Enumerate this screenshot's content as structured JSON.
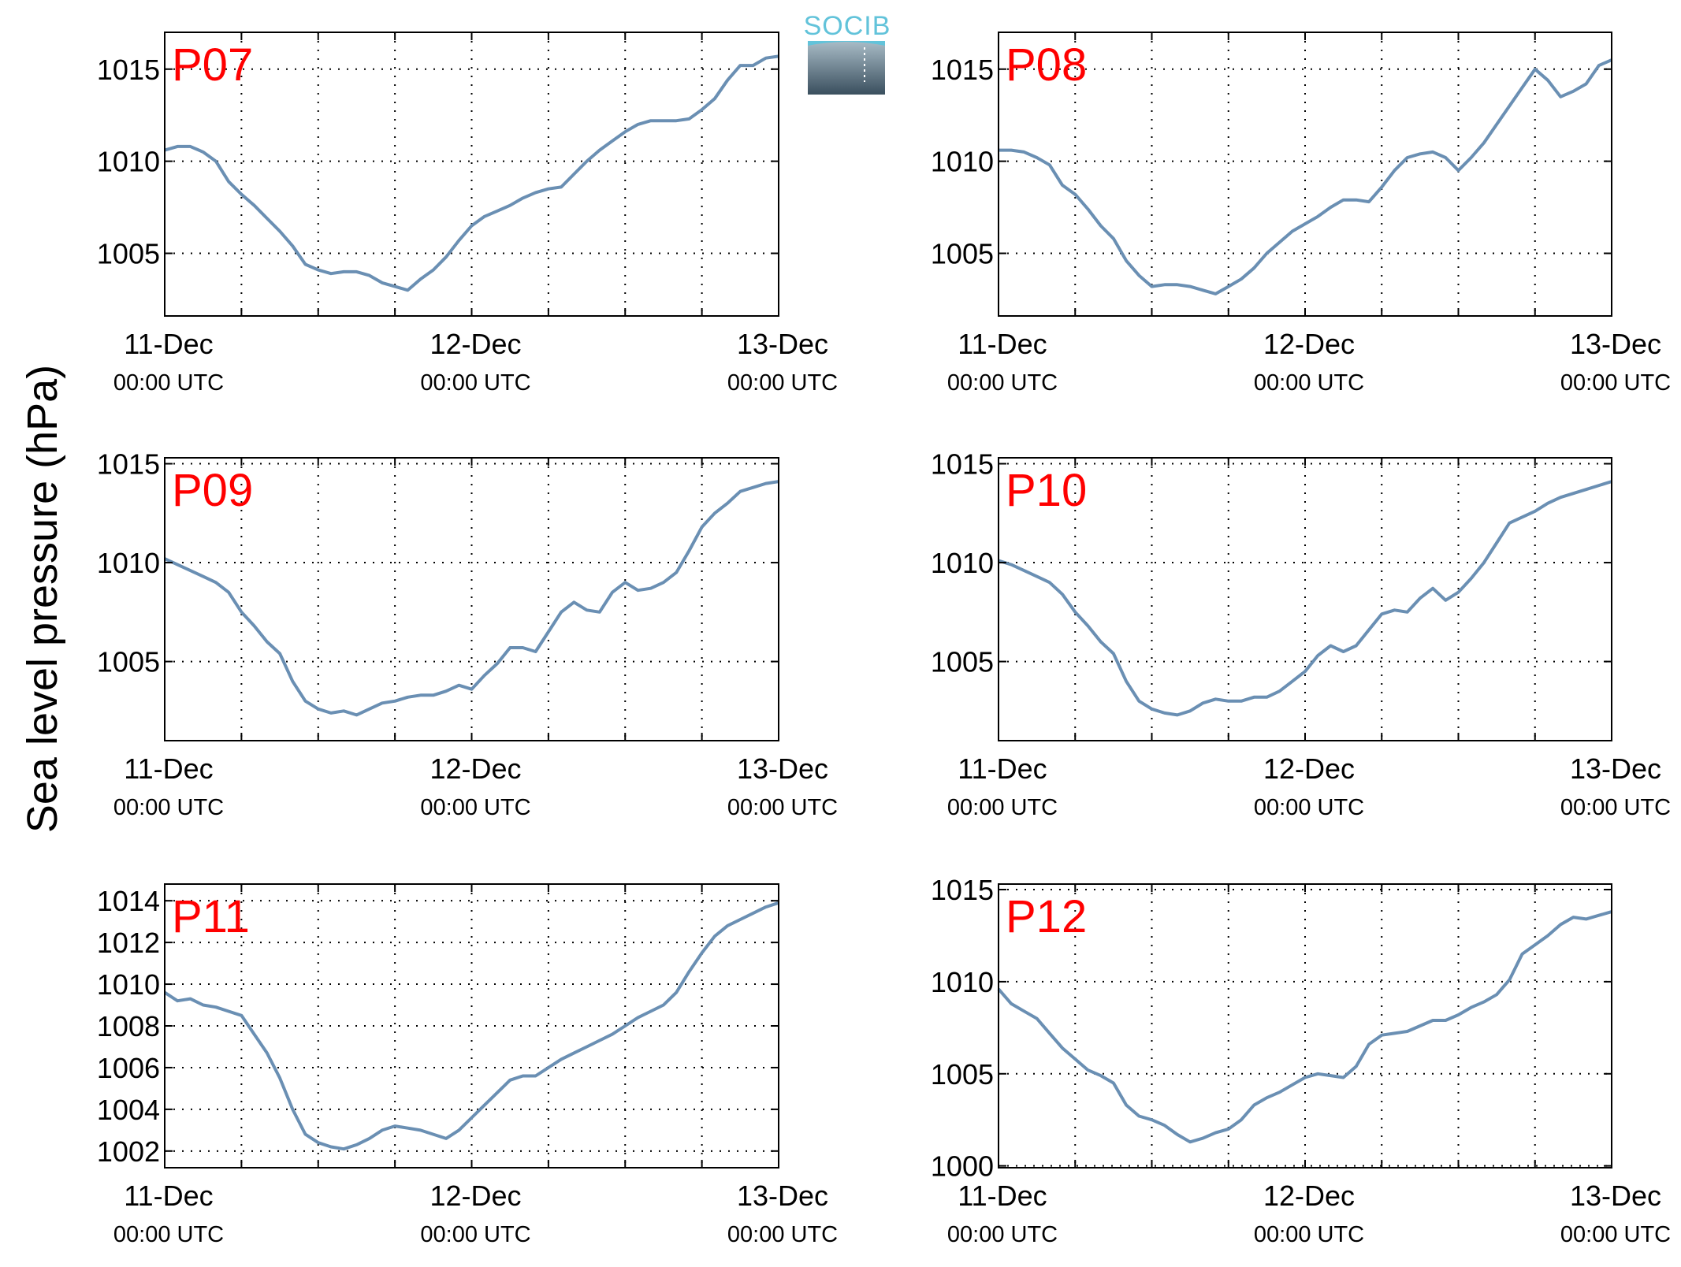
{
  "figure": {
    "ylabel": "Sea level pressure (hPa)",
    "logo_text": "SOCIB",
    "colors": {
      "line": "#6a8fb3",
      "station_label": "#ff0000",
      "axis": "#000000",
      "grid": "#000000"
    }
  },
  "chart_data": [
    {
      "type": "line",
      "station": "P07",
      "xlabels": [
        {
          "day": "11-Dec",
          "time": "00:00 UTC"
        },
        {
          "day": "12-Dec",
          "time": "00:00 UTC"
        },
        {
          "day": "13-Dec",
          "time": "00:00 UTC"
        }
      ],
      "xlim": [
        0,
        48
      ],
      "ylim": [
        1001.6,
        1017
      ],
      "yticks": [
        1005,
        1010,
        1015
      ],
      "grid": true,
      "x": [
        0,
        1,
        2,
        3,
        4,
        5,
        6,
        7,
        8,
        9,
        10,
        11,
        12,
        13,
        14,
        15,
        16,
        17,
        18,
        19,
        20,
        21,
        22,
        23,
        24,
        25,
        26,
        27,
        28,
        29,
        30,
        31,
        32,
        33,
        34,
        35,
        36,
        37,
        38,
        39,
        40,
        41,
        42,
        43,
        44,
        45,
        46,
        47,
        48
      ],
      "y": [
        1010.6,
        1010.8,
        1010.8,
        1010.5,
        1010.0,
        1008.9,
        1008.2,
        1007.6,
        1006.9,
        1006.2,
        1005.4,
        1004.4,
        1004.1,
        1003.9,
        1004.0,
        1004.0,
        1003.8,
        1003.4,
        1003.2,
        1003.0,
        1003.6,
        1004.1,
        1004.8,
        1005.7,
        1006.5,
        1007.0,
        1007.3,
        1007.6,
        1008.0,
        1008.3,
        1008.5,
        1008.6,
        1009.3,
        1010.0,
        1010.6,
        1011.1,
        1011.6,
        1012.0,
        1012.2,
        1012.2,
        1012.2,
        1012.3,
        1012.8,
        1013.4,
        1014.4,
        1015.2,
        1015.2,
        1015.6,
        1015.7
      ]
    },
    {
      "type": "line",
      "station": "P08",
      "xlabels": [
        {
          "day": "11-Dec",
          "time": "00:00 UTC"
        },
        {
          "day": "12-Dec",
          "time": "00:00 UTC"
        },
        {
          "day": "13-Dec",
          "time": "00:00 UTC"
        }
      ],
      "xlim": [
        0,
        48
      ],
      "ylim": [
        1001.6,
        1017
      ],
      "yticks": [
        1005,
        1010,
        1015
      ],
      "grid": true,
      "x": [
        0,
        1,
        2,
        3,
        4,
        5,
        6,
        7,
        8,
        9,
        10,
        11,
        12,
        13,
        14,
        15,
        16,
        17,
        18,
        19,
        20,
        21,
        22,
        23,
        24,
        25,
        26,
        27,
        28,
        29,
        30,
        31,
        32,
        33,
        34,
        35,
        36,
        37,
        38,
        39,
        40,
        41,
        42,
        43,
        44,
        45,
        46,
        47,
        48
      ],
      "y": [
        1010.6,
        1010.6,
        1010.5,
        1010.2,
        1009.8,
        1008.7,
        1008.2,
        1007.4,
        1006.5,
        1005.8,
        1004.6,
        1003.8,
        1003.2,
        1003.3,
        1003.3,
        1003.2,
        1003.0,
        1002.8,
        1003.2,
        1003.6,
        1004.2,
        1005.0,
        1005.6,
        1006.2,
        1006.6,
        1007.0,
        1007.5,
        1007.9,
        1007.9,
        1007.8,
        1008.6,
        1009.5,
        1010.2,
        1010.4,
        1010.5,
        1010.2,
        1009.5,
        1010.2,
        1011.0,
        1012.0,
        1013.0,
        1014.0,
        1015.0,
        1014.4,
        1013.5,
        1013.8,
        1014.2,
        1015.2,
        1015.5
      ]
    },
    {
      "type": "line",
      "station": "P09",
      "xlabels": [
        {
          "day": "11-Dec",
          "time": "00:00 UTC"
        },
        {
          "day": "12-Dec",
          "time": "00:00 UTC"
        },
        {
          "day": "13-Dec",
          "time": "00:00 UTC"
        }
      ],
      "xlim": [
        0,
        48
      ],
      "ylim": [
        1001.0,
        1015.3
      ],
      "yticks": [
        1005,
        1010,
        1015
      ],
      "grid": true,
      "x": [
        0,
        1,
        2,
        3,
        4,
        5,
        6,
        7,
        8,
        9,
        10,
        11,
        12,
        13,
        14,
        15,
        16,
        17,
        18,
        19,
        20,
        21,
        22,
        23,
        24,
        25,
        26,
        27,
        28,
        29,
        30,
        31,
        32,
        33,
        34,
        35,
        36,
        37,
        38,
        39,
        40,
        41,
        42,
        43,
        44,
        45,
        46,
        47,
        48
      ],
      "y": [
        1010.2,
        1009.9,
        1009.6,
        1009.3,
        1009.0,
        1008.5,
        1007.5,
        1006.8,
        1006.0,
        1005.4,
        1004.0,
        1003.0,
        1002.6,
        1002.4,
        1002.5,
        1002.3,
        1002.6,
        1002.9,
        1003.0,
        1003.2,
        1003.3,
        1003.3,
        1003.5,
        1003.8,
        1003.6,
        1004.3,
        1004.9,
        1005.7,
        1005.7,
        1005.5,
        1006.5,
        1007.5,
        1008.0,
        1007.6,
        1007.5,
        1008.5,
        1009.0,
        1008.6,
        1008.7,
        1009.0,
        1009.5,
        1010.6,
        1011.8,
        1012.5,
        1013.0,
        1013.6,
        1013.8,
        1014.0,
        1014.1
      ]
    },
    {
      "type": "line",
      "station": "P10",
      "xlabels": [
        {
          "day": "11-Dec",
          "time": "00:00 UTC"
        },
        {
          "day": "12-Dec",
          "time": "00:00 UTC"
        },
        {
          "day": "13-Dec",
          "time": "00:00 UTC"
        }
      ],
      "xlim": [
        0,
        48
      ],
      "ylim": [
        1001.0,
        1015.3
      ],
      "yticks": [
        1005,
        1010,
        1015
      ],
      "grid": true,
      "x": [
        0,
        1,
        2,
        3,
        4,
        5,
        6,
        7,
        8,
        9,
        10,
        11,
        12,
        13,
        14,
        15,
        16,
        17,
        18,
        19,
        20,
        21,
        22,
        23,
        24,
        25,
        26,
        27,
        28,
        29,
        30,
        31,
        32,
        33,
        34,
        35,
        36,
        37,
        38,
        39,
        40,
        41,
        42,
        43,
        44,
        45,
        46,
        47,
        48
      ],
      "y": [
        1010.1,
        1009.9,
        1009.6,
        1009.3,
        1009.0,
        1008.4,
        1007.5,
        1006.8,
        1006.0,
        1005.4,
        1004.0,
        1003.0,
        1002.6,
        1002.4,
        1002.3,
        1002.5,
        1002.9,
        1003.1,
        1003.0,
        1003.0,
        1003.2,
        1003.2,
        1003.5,
        1004.0,
        1004.5,
        1005.3,
        1005.8,
        1005.5,
        1005.8,
        1006.6,
        1007.4,
        1007.6,
        1007.5,
        1008.2,
        1008.7,
        1008.1,
        1008.5,
        1009.2,
        1010.0,
        1011.0,
        1012.0,
        1012.3,
        1012.6,
        1013.0,
        1013.3,
        1013.5,
        1013.7,
        1013.9,
        1014.1
      ]
    },
    {
      "type": "line",
      "station": "P11",
      "xlabels": [
        {
          "day": "11-Dec",
          "time": "00:00 UTC"
        },
        {
          "day": "12-Dec",
          "time": "00:00 UTC"
        },
        {
          "day": "13-Dec",
          "time": "00:00 UTC"
        }
      ],
      "xlim": [
        0,
        48
      ],
      "ylim": [
        1001.2,
        1014.8
      ],
      "yticks": [
        1002,
        1004,
        1006,
        1008,
        1010,
        1012,
        1014
      ],
      "grid": true,
      "x": [
        0,
        1,
        2,
        3,
        4,
        5,
        6,
        7,
        8,
        9,
        10,
        11,
        12,
        13,
        14,
        15,
        16,
        17,
        18,
        19,
        20,
        21,
        22,
        23,
        24,
        25,
        26,
        27,
        28,
        29,
        30,
        31,
        32,
        33,
        34,
        35,
        36,
        37,
        38,
        39,
        40,
        41,
        42,
        43,
        44,
        45,
        46,
        47,
        48
      ],
      "y": [
        1009.6,
        1009.2,
        1009.3,
        1009.0,
        1008.9,
        1008.7,
        1008.5,
        1007.6,
        1006.7,
        1005.5,
        1004.0,
        1002.8,
        1002.4,
        1002.2,
        1002.1,
        1002.3,
        1002.6,
        1003.0,
        1003.2,
        1003.1,
        1003.0,
        1002.8,
        1002.6,
        1003.0,
        1003.6,
        1004.2,
        1004.8,
        1005.4,
        1005.6,
        1005.6,
        1006.0,
        1006.4,
        1006.7,
        1007.0,
        1007.3,
        1007.6,
        1008.0,
        1008.4,
        1008.7,
        1009.0,
        1009.6,
        1010.6,
        1011.5,
        1012.3,
        1012.8,
        1013.1,
        1013.4,
        1013.7,
        1013.9
      ]
    },
    {
      "type": "line",
      "station": "P12",
      "xlabels": [
        {
          "day": "11-Dec",
          "time": "00:00 UTC"
        },
        {
          "day": "12-Dec",
          "time": "00:00 UTC"
        },
        {
          "day": "13-Dec",
          "time": "00:00 UTC"
        }
      ],
      "xlim": [
        0,
        48
      ],
      "ylim": [
        999.9,
        1015.3
      ],
      "yticks": [
        1000,
        1005,
        1010,
        1015
      ],
      "grid": true,
      "x": [
        0,
        1,
        2,
        3,
        4,
        5,
        6,
        7,
        8,
        9,
        10,
        11,
        12,
        13,
        14,
        15,
        16,
        17,
        18,
        19,
        20,
        21,
        22,
        23,
        24,
        25,
        26,
        27,
        28,
        29,
        30,
        31,
        32,
        33,
        34,
        35,
        36,
        37,
        38,
        39,
        40,
        41,
        42,
        43,
        44,
        45,
        46,
        47,
        48
      ],
      "y": [
        1009.6,
        1008.8,
        1008.4,
        1008.0,
        1007.2,
        1006.4,
        1005.8,
        1005.2,
        1004.9,
        1004.5,
        1003.3,
        1002.7,
        1002.5,
        1002.2,
        1001.7,
        1001.3,
        1001.5,
        1001.8,
        1002.0,
        1002.5,
        1003.3,
        1003.7,
        1004.0,
        1004.4,
        1004.8,
        1005.0,
        1004.9,
        1004.8,
        1005.4,
        1006.6,
        1007.1,
        1007.2,
        1007.3,
        1007.6,
        1007.9,
        1007.9,
        1008.2,
        1008.6,
        1008.9,
        1009.3,
        1010.1,
        1011.5,
        1012.0,
        1012.5,
        1013.1,
        1013.5,
        1013.4,
        1013.6,
        1013.8
      ]
    }
  ]
}
